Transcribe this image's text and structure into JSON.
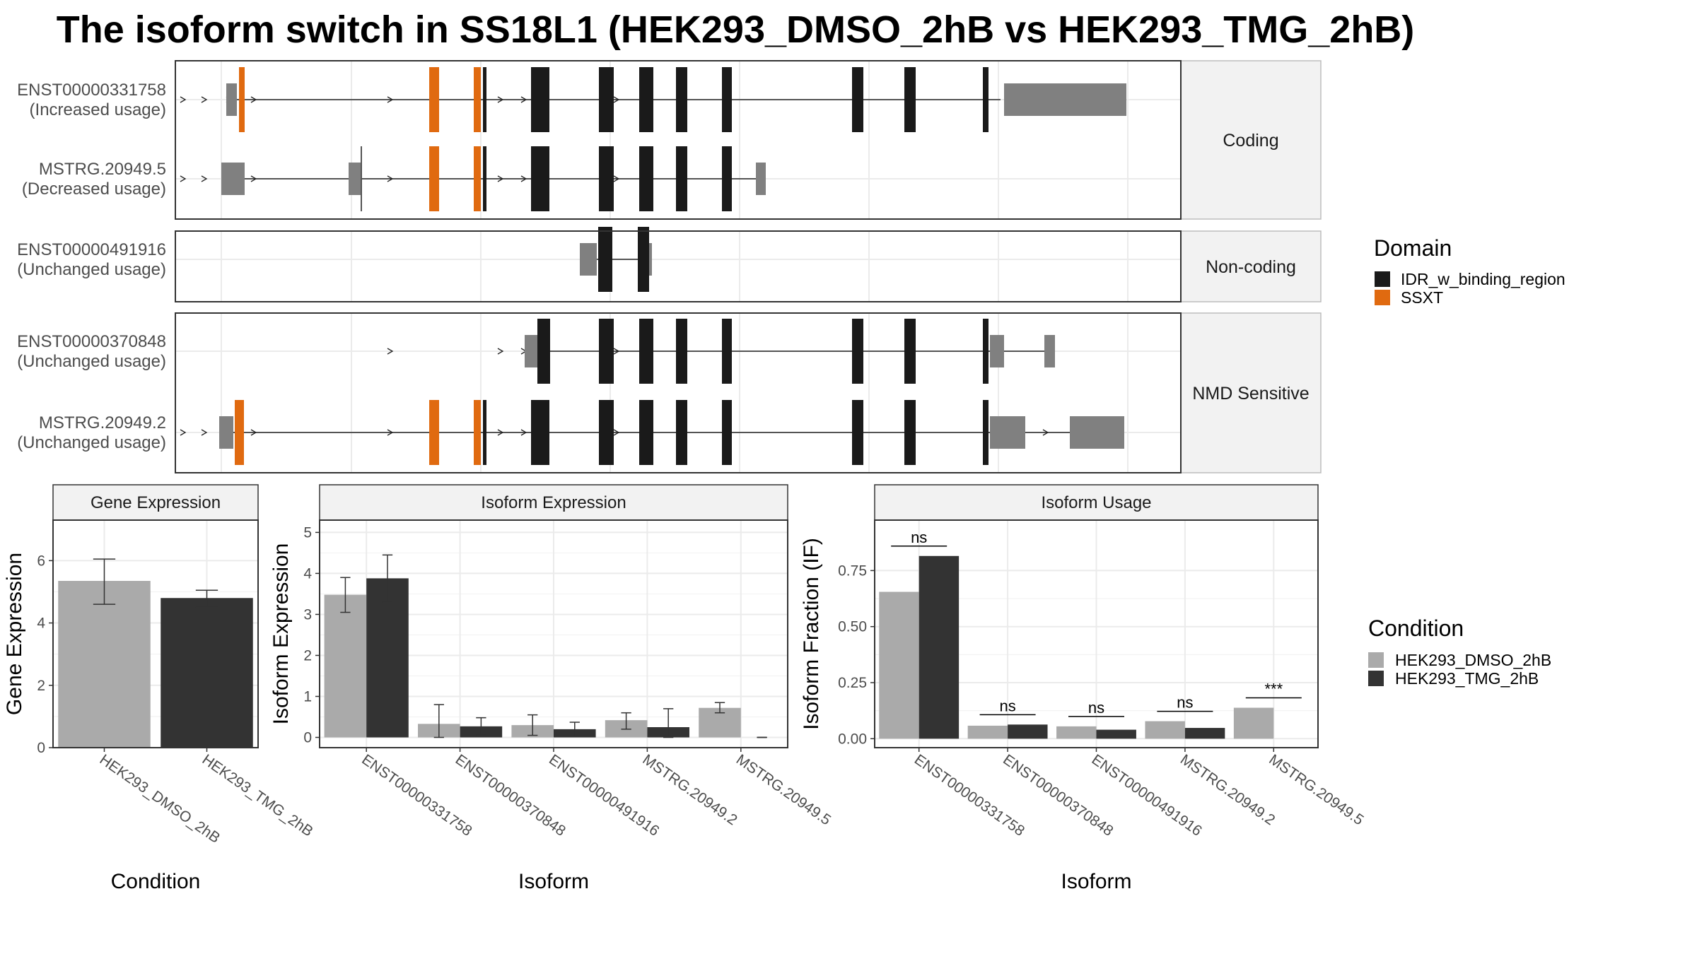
{
  "title": "The isoform switch in SS18L1 (HEK293_DMSO_2hB vs HEK293_TMG_2hB)",
  "colors": {
    "idr": "#1a1a1a",
    "ssxt": "#e06a10",
    "utr": "#808080",
    "dmso": "#aaaaaa",
    "tmg": "#333333",
    "strip_bg": "#f2f2f2",
    "grid": "#ebebeb",
    "panel_border": "#333333"
  },
  "chart_data": [
    {
      "type": "gene-structure",
      "legend": {
        "title": "Domain",
        "entries": [
          {
            "name": "IDR_w_binding_region",
            "color": "#1a1a1a"
          },
          {
            "name": "SSXT",
            "color": "#e06a10"
          }
        ]
      },
      "facets": [
        {
          "label": "Coding",
          "transcripts": [
            {
              "id": "ENST00000331758",
              "usage": "(Increased usage)",
              "intron": [
                332,
                1415
              ],
              "arrows": [
                260,
                290,
                325,
                360,
                553,
                709,
                742,
                873
              ],
              "utr": [
                [
                  320,
                  335
                ],
                [
                  1420,
                  1593
                ]
              ],
              "ssxt": [
                [
                  338,
                  346
                ],
                [
                  607,
                  621
                ],
                [
                  670,
                  680
                ]
              ],
              "idr": [
                [
                  683,
                  688
                ],
                [
                  751,
                  777
                ],
                [
                  847,
                  868
                ],
                [
                  904,
                  924
                ],
                [
                  956,
                  972
                ],
                [
                  1021,
                  1035
                ],
                [
                  1205,
                  1221
                ],
                [
                  1279,
                  1295
                ],
                [
                  1390,
                  1398
                ]
              ]
            },
            {
              "id": "MSTRG.20949.5",
              "usage": "(Decreased usage)",
              "intron": [
                342,
                1082
              ],
              "arrows": [
                260,
                290,
                325,
                360,
                553,
                709,
                742,
                873
              ],
              "utr": [
                [
                  313,
                  346
                ],
                [
                  493,
                  511
                ],
                [
                  1069,
                  1083
                ]
              ],
              "utr_mark": [
                511
              ],
              "ssxt": [
                [
                  607,
                  621
                ],
                [
                  670,
                  680
                ]
              ],
              "idr": [
                [
                  683,
                  688
                ],
                [
                  751,
                  777
                ],
                [
                  847,
                  868
                ],
                [
                  904,
                  924
                ],
                [
                  956,
                  972
                ],
                [
                  1021,
                  1035
                ]
              ]
            }
          ]
        },
        {
          "label": "Non-coding",
          "transcripts": [
            {
              "id": "ENST00000491916",
              "usage": "(Unchanged usage)",
              "intron": [
                823,
                922
              ],
              "arrows": [],
              "utr": [
                [
                  820,
                  844
                ],
                [
                  915,
                  922
                ]
              ],
              "ssxt": [],
              "idr": [
                [
                  846,
                  866
                ],
                [
                  902,
                  918
                ]
              ]
            }
          ]
        },
        {
          "label": "NMD Sensitive",
          "transcripts": [
            {
              "id": "ENST00000370848",
              "usage": "(Unchanged usage)",
              "intron": [
                745,
                1492
              ],
              "arrows": [
                553,
                709,
                742,
                873
              ],
              "utr": [
                [
                  742,
                  760
                ],
                [
                  1400,
                  1420
                ],
                [
                  1477,
                  1492
                ]
              ],
              "ssxt": [],
              "idr": [
                [
                  760,
                  778
                ],
                [
                  847,
                  868
                ],
                [
                  904,
                  924
                ],
                [
                  956,
                  972
                ],
                [
                  1021,
                  1035
                ],
                [
                  1205,
                  1221
                ],
                [
                  1279,
                  1295
                ],
                [
                  1390,
                  1398
                ]
              ]
            },
            {
              "id": "MSTRG.20949.2",
              "usage": "(Unchanged usage)",
              "intron": [
                330,
                1590
              ],
              "arrows": [
                260,
                290,
                325,
                360,
                553,
                709,
                742,
                873,
                1480
              ],
              "utr": [
                [
                  310,
                  330
                ],
                [
                  1400,
                  1450
                ],
                [
                  1513,
                  1590
                ]
              ],
              "ssxt": [
                [
                  332,
                  345
                ],
                [
                  607,
                  621
                ],
                [
                  670,
                  680
                ]
              ],
              "idr": [
                [
                  683,
                  688
                ],
                [
                  751,
                  777
                ],
                [
                  847,
                  868
                ],
                [
                  904,
                  924
                ],
                [
                  956,
                  972
                ],
                [
                  1021,
                  1035
                ],
                [
                  1205,
                  1221
                ],
                [
                  1279,
                  1295
                ],
                [
                  1390,
                  1398
                ]
              ]
            }
          ]
        }
      ]
    },
    {
      "type": "bar",
      "title": "Gene Expression",
      "xlabel": "Condition",
      "ylabel": "Gene Expression",
      "categories": [
        "HEK293_DMSO_2hB",
        "HEK293_TMG_2hB"
      ],
      "values": [
        5.35,
        4.8
      ],
      "errors": [
        [
          4.6,
          6.05
        ],
        [
          4.5,
          5.05
        ]
      ],
      "colors": [
        "#aaaaaa",
        "#333333"
      ],
      "ylim": [
        0,
        7.3
      ],
      "yticks": [
        "0",
        "2",
        "4",
        "6"
      ]
    },
    {
      "type": "bar",
      "title": "Isoform Expression",
      "xlabel": "Isoform",
      "ylabel": "Isoform Expression",
      "categories": [
        "ENST00000331758",
        "ENST00000370848",
        "ENST00000491916",
        "MSTRG.20949.2",
        "MSTRG.20949.5"
      ],
      "series": [
        {
          "values": [
            3.48,
            0.33,
            0.3,
            0.42,
            0.72
          ],
          "errors": [
            [
              3.05,
              3.9
            ],
            [
              0.0,
              0.8
            ],
            [
              0.05,
              0.55
            ],
            [
              0.2,
              0.6
            ],
            [
              0.6,
              0.85
            ]
          ]
        },
        {
          "values": [
            3.88,
            0.27,
            0.2,
            0.25,
            0.0
          ],
          "errors": [
            [
              3.3,
              4.45
            ],
            [
              0.05,
              0.48
            ],
            [
              0.03,
              0.37
            ],
            [
              0.0,
              0.7
            ],
            [
              0.0,
              0.0
            ]
          ]
        }
      ],
      "ylim": [
        -0.25,
        5.3
      ],
      "yticks": [
        "0",
        "1",
        "2",
        "3",
        "4",
        "5"
      ]
    },
    {
      "type": "bar",
      "title": "Isoform Usage",
      "xlabel": "Isoform",
      "ylabel": "Isoform Fraction (IF)",
      "categories": [
        "ENST00000331758",
        "ENST00000370848",
        "ENST00000491916",
        "MSTRG.20949.2",
        "MSTRG.20949.5"
      ],
      "series": [
        {
          "values": [
            0.655,
            0.058,
            0.055,
            0.078,
            0.138
          ]
        },
        {
          "values": [
            0.815,
            0.063,
            0.04,
            0.048,
            0.0
          ]
        }
      ],
      "significance": [
        "ns",
        "ns",
        "ns",
        "ns",
        "***"
      ],
      "ylim": [
        -0.04,
        0.975
      ],
      "yticks": [
        "0.00",
        "0.25",
        "0.50",
        "0.75"
      ],
      "legend": {
        "title": "Condition",
        "entries": [
          {
            "name": "HEK293_DMSO_2hB",
            "color": "#aaaaaa"
          },
          {
            "name": "HEK293_TMG_2hB",
            "color": "#333333"
          }
        ]
      }
    }
  ]
}
